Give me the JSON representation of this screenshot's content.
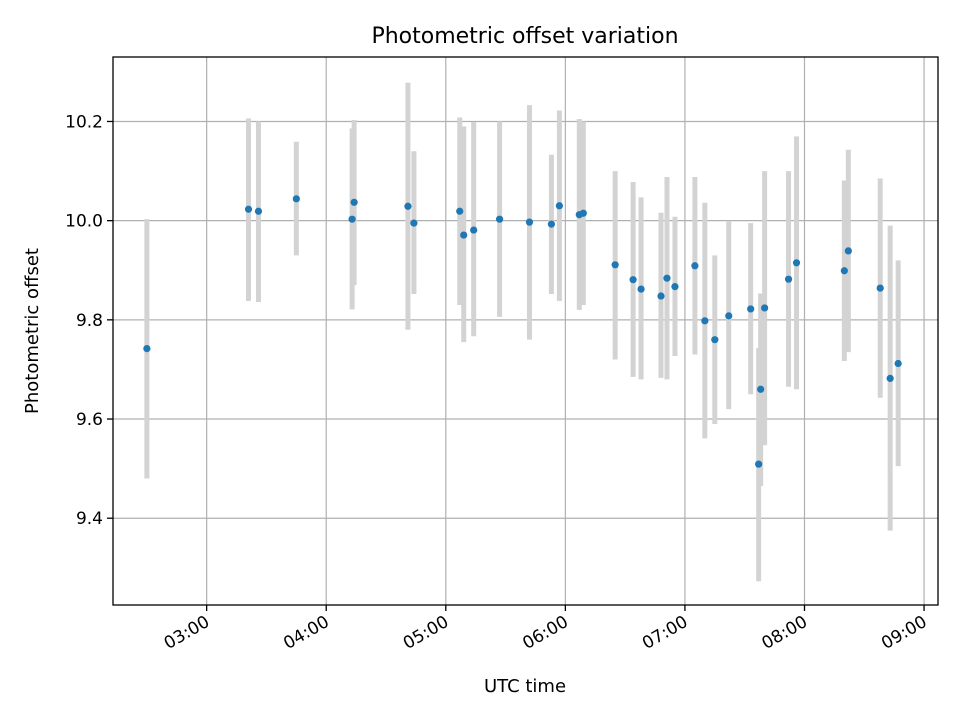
{
  "chart_data": {
    "type": "scatter",
    "title": "Photometric offset variation",
    "xlabel": "UTC time",
    "ylabel": "Photometric offset",
    "x_tick_labels": [
      "03:00",
      "04:00",
      "05:00",
      "06:00",
      "07:00",
      "08:00",
      "09:00"
    ],
    "x_ticks": [
      "03:00",
      "04:00",
      "05:00",
      "06:00",
      "07:00",
      "08:00",
      "09:00"
    ],
    "y_ticks": [
      9.4,
      9.6,
      9.8,
      10.0,
      10.2
    ],
    "y_tick_labels": [
      "9.4",
      "9.6",
      "9.8",
      "10.0",
      "10.2"
    ],
    "xlim": [
      "02:13",
      "09:07"
    ],
    "ylim": [
      9.225,
      10.33
    ],
    "grid": true,
    "colors": {
      "marker": "#1f77b4",
      "errorbar": "#d3d3d3",
      "grid": "#b0b0b0"
    },
    "points": [
      {
        "x": "02:30",
        "y": 9.742,
        "ylow": 9.48,
        "yhigh": 10.003
      },
      {
        "x": "03:21",
        "y": 10.023,
        "ylow": 9.838,
        "yhigh": 10.206
      },
      {
        "x": "03:26",
        "y": 10.019,
        "ylow": 9.836,
        "yhigh": 10.2
      },
      {
        "x": "03:45",
        "y": 10.044,
        "ylow": 9.93,
        "yhigh": 10.159
      },
      {
        "x": "04:13",
        "y": 10.003,
        "ylow": 9.821,
        "yhigh": 10.186
      },
      {
        "x": "04:14",
        "y": 10.037,
        "ylow": 9.87,
        "yhigh": 10.203
      },
      {
        "x": "04:41",
        "y": 10.029,
        "ylow": 9.78,
        "yhigh": 10.278
      },
      {
        "x": "04:44",
        "y": 9.995,
        "ylow": 9.852,
        "yhigh": 10.14
      },
      {
        "x": "05:07",
        "y": 10.019,
        "ylow": 9.83,
        "yhigh": 10.208
      },
      {
        "x": "05:09",
        "y": 9.971,
        "ylow": 9.755,
        "yhigh": 10.19
      },
      {
        "x": "05:14",
        "y": 9.981,
        "ylow": 9.767,
        "yhigh": 10.199
      },
      {
        "x": "05:27",
        "y": 10.003,
        "ylow": 9.806,
        "yhigh": 10.2
      },
      {
        "x": "05:42",
        "y": 9.997,
        "ylow": 9.76,
        "yhigh": 10.233
      },
      {
        "x": "05:53",
        "y": 9.993,
        "ylow": 9.852,
        "yhigh": 10.133
      },
      {
        "x": "05:57",
        "y": 10.03,
        "ylow": 9.838,
        "yhigh": 10.222
      },
      {
        "x": "06:07",
        "y": 10.012,
        "ylow": 9.82,
        "yhigh": 10.205
      },
      {
        "x": "06:09",
        "y": 10.015,
        "ylow": 9.83,
        "yhigh": 10.2
      },
      {
        "x": "06:25",
        "y": 9.911,
        "ylow": 9.72,
        "yhigh": 10.1
      },
      {
        "x": "06:34",
        "y": 9.881,
        "ylow": 9.685,
        "yhigh": 10.078
      },
      {
        "x": "06:38",
        "y": 9.862,
        "ylow": 9.68,
        "yhigh": 10.047
      },
      {
        "x": "06:48",
        "y": 9.848,
        "ylow": 9.683,
        "yhigh": 10.016
      },
      {
        "x": "06:51",
        "y": 9.884,
        "ylow": 9.68,
        "yhigh": 10.088
      },
      {
        "x": "06:55",
        "y": 9.867,
        "ylow": 9.727,
        "yhigh": 10.008
      },
      {
        "x": "07:05",
        "y": 9.909,
        "ylow": 9.73,
        "yhigh": 10.088
      },
      {
        "x": "07:10",
        "y": 9.798,
        "ylow": 9.561,
        "yhigh": 10.036
      },
      {
        "x": "07:15",
        "y": 9.76,
        "ylow": 9.59,
        "yhigh": 9.93
      },
      {
        "x": "07:22",
        "y": 9.808,
        "ylow": 9.62,
        "yhigh": 9.998
      },
      {
        "x": "07:33",
        "y": 9.822,
        "ylow": 9.65,
        "yhigh": 9.995
      },
      {
        "x": "07:37",
        "y": 9.509,
        "ylow": 9.273,
        "yhigh": 9.743
      },
      {
        "x": "07:38",
        "y": 9.66,
        "ylow": 9.465,
        "yhigh": 9.853
      },
      {
        "x": "07:40",
        "y": 9.824,
        "ylow": 9.547,
        "yhigh": 10.1
      },
      {
        "x": "07:52",
        "y": 9.882,
        "ylow": 9.665,
        "yhigh": 10.1
      },
      {
        "x": "07:56",
        "y": 9.915,
        "ylow": 9.66,
        "yhigh": 10.17
      },
      {
        "x": "08:20",
        "y": 9.899,
        "ylow": 9.717,
        "yhigh": 10.081
      },
      {
        "x": "08:22",
        "y": 9.939,
        "ylow": 9.735,
        "yhigh": 10.143
      },
      {
        "x": "08:38",
        "y": 9.864,
        "ylow": 9.643,
        "yhigh": 10.085
      },
      {
        "x": "08:43",
        "y": 9.682,
        "ylow": 9.375,
        "yhigh": 9.99
      },
      {
        "x": "08:47",
        "y": 9.712,
        "ylow": 9.505,
        "yhigh": 9.92
      }
    ]
  }
}
